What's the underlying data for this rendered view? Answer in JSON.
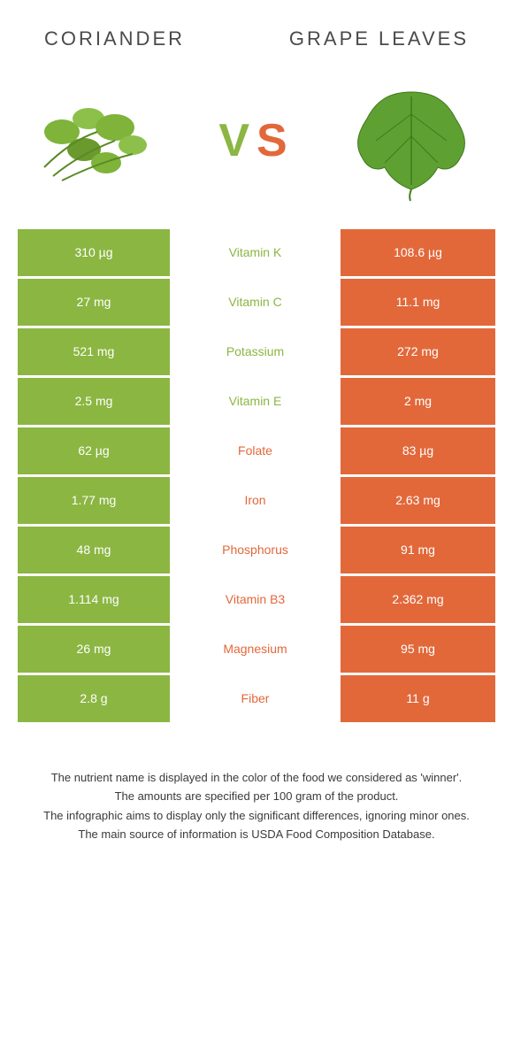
{
  "header": {
    "left_title": "Coriander",
    "right_title": "Grape leaves",
    "vs_v": "V",
    "vs_s": "S"
  },
  "colors": {
    "green": "#8bb642",
    "orange": "#e2683a",
    "text": "#4a4a4a",
    "white": "#ffffff"
  },
  "comparison": {
    "type": "table",
    "left_food": "Coriander",
    "right_food": "Grape leaves",
    "left_color": "#8bb642",
    "right_color": "#e2683a",
    "rows": [
      {
        "left": "310 µg",
        "nutrient": "Vitamin K",
        "right": "108.6 µg",
        "winner": "left"
      },
      {
        "left": "27 mg",
        "nutrient": "Vitamin C",
        "right": "11.1 mg",
        "winner": "left"
      },
      {
        "left": "521 mg",
        "nutrient": "Potassium",
        "right": "272 mg",
        "winner": "left"
      },
      {
        "left": "2.5 mg",
        "nutrient": "Vitamin E",
        "right": "2 mg",
        "winner": "left"
      },
      {
        "left": "62 µg",
        "nutrient": "Folate",
        "right": "83 µg",
        "winner": "right"
      },
      {
        "left": "1.77 mg",
        "nutrient": "Iron",
        "right": "2.63 mg",
        "winner": "right"
      },
      {
        "left": "48 mg",
        "nutrient": "Phosphorus",
        "right": "91 mg",
        "winner": "right"
      },
      {
        "left": "1.114 mg",
        "nutrient": "Vitamin B3",
        "right": "2.362 mg",
        "winner": "right"
      },
      {
        "left": "26 mg",
        "nutrient": "Magnesium",
        "right": "95 mg",
        "winner": "right"
      },
      {
        "left": "2.8 g",
        "nutrient": "Fiber",
        "right": "11 g",
        "winner": "right"
      }
    ]
  },
  "footer": {
    "line1": "The nutrient name is displayed in the color of the food we considered as 'winner'.",
    "line2": "The amounts are specified per 100 gram of the product.",
    "line3": "The infographic aims to display only the significant differences, ignoring minor ones.",
    "line4": "The main source of information is USDA Food Composition Database."
  }
}
